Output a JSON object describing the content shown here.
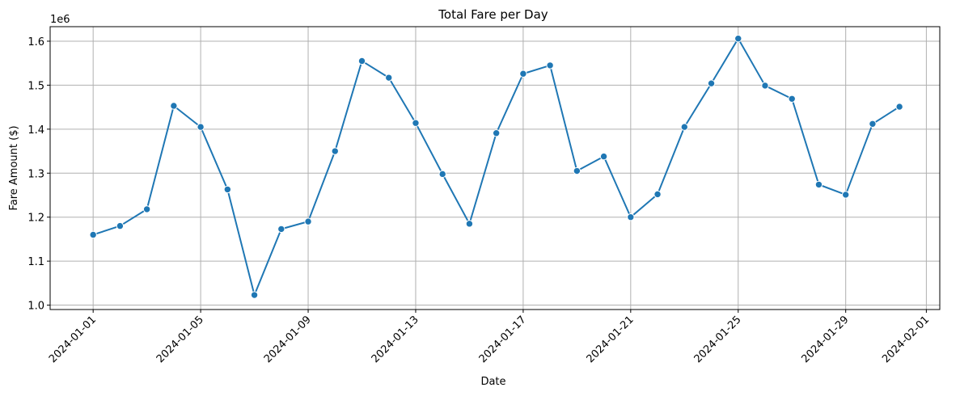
{
  "chart_data": {
    "type": "line",
    "title": "Total Fare per Day",
    "xlabel": "Date",
    "ylabel": "Fare Amount ($)",
    "y_scale_label": "1e6",
    "ylim": [
      0.99,
      1.633
    ],
    "y_ticks": [
      1.0,
      1.1,
      1.2,
      1.3,
      1.4,
      1.5,
      1.6
    ],
    "y_tick_labels": [
      "1.0",
      "1.1",
      "1.2",
      "1.3",
      "1.4",
      "1.5",
      "1.6"
    ],
    "x_tick_labels": [
      "2024-01-01",
      "2024-01-05",
      "2024-01-09",
      "2024-01-13",
      "2024-01-17",
      "2024-01-21",
      "2024-01-25",
      "2024-01-29",
      "2024-02-01"
    ],
    "x_tick_days": [
      1,
      5,
      9,
      13,
      17,
      21,
      25,
      29,
      32
    ],
    "xlim_days": [
      -0.6,
      32.5
    ],
    "grid": true,
    "color": "#1f77b4",
    "x": [
      "2024-01-01",
      "2024-01-02",
      "2024-01-03",
      "2024-01-04",
      "2024-01-05",
      "2024-01-06",
      "2024-01-07",
      "2024-01-08",
      "2024-01-09",
      "2024-01-10",
      "2024-01-11",
      "2024-01-12",
      "2024-01-13",
      "2024-01-14",
      "2024-01-15",
      "2024-01-16",
      "2024-01-17",
      "2024-01-18",
      "2024-01-19",
      "2024-01-20",
      "2024-01-21",
      "2024-01-22",
      "2024-01-23",
      "2024-01-24",
      "2024-01-25",
      "2024-01-26",
      "2024-01-27",
      "2024-01-28",
      "2024-01-29",
      "2024-01-30",
      "2024-01-31"
    ],
    "values": [
      1.16,
      1.18,
      1.218,
      1.453,
      1.405,
      1.263,
      1.023,
      1.173,
      1.19,
      1.35,
      1.555,
      1.517,
      1.414,
      1.298,
      1.185,
      1.391,
      1.526,
      1.545,
      1.305,
      1.338,
      1.2,
      1.252,
      1.405,
      1.504,
      1.606,
      1.499,
      1.469,
      1.274,
      1.251,
      1.412,
      1.451
    ]
  }
}
